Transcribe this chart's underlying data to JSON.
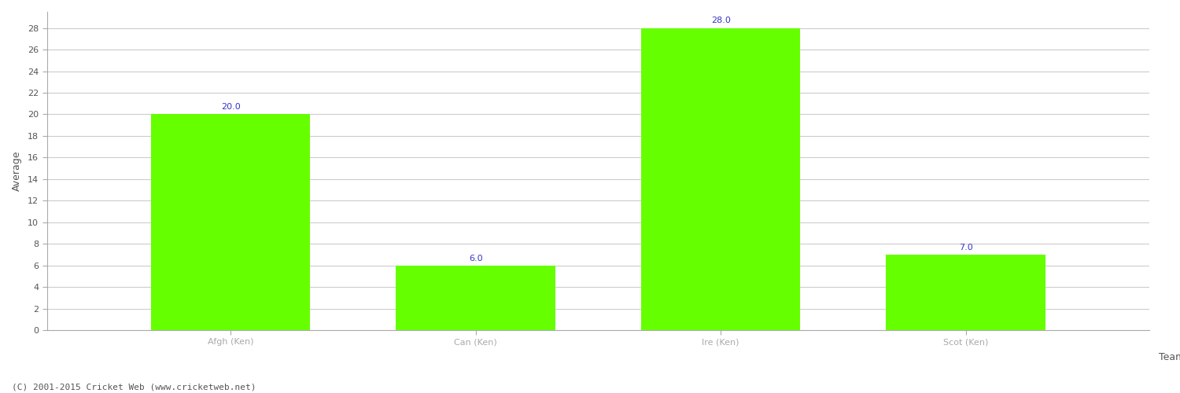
{
  "categories": [
    "Afgh (Ken)",
    "Can (Ken)",
    "Ire (Ken)",
    "Scot (Ken)"
  ],
  "values": [
    20.0,
    6.0,
    28.0,
    7.0
  ],
  "bar_color": "#66ff00",
  "label_color": "#3333cc",
  "ylabel": "Average",
  "xlabel": "Team",
  "ylim": [
    0,
    29.5
  ],
  "yticks": [
    0,
    2,
    4,
    6,
    8,
    10,
    12,
    14,
    16,
    18,
    20,
    22,
    24,
    26,
    28
  ],
  "label_fontsize": 8,
  "axis_fontsize": 9,
  "tick_fontsize": 8,
  "bar_width": 0.65,
  "background_color": "#ffffff",
  "grid_color": "#cccccc",
  "footer_text": "(C) 2001-2015 Cricket Web (www.cricketweb.net)",
  "footer_fontsize": 8,
  "footer_color": "#555555"
}
